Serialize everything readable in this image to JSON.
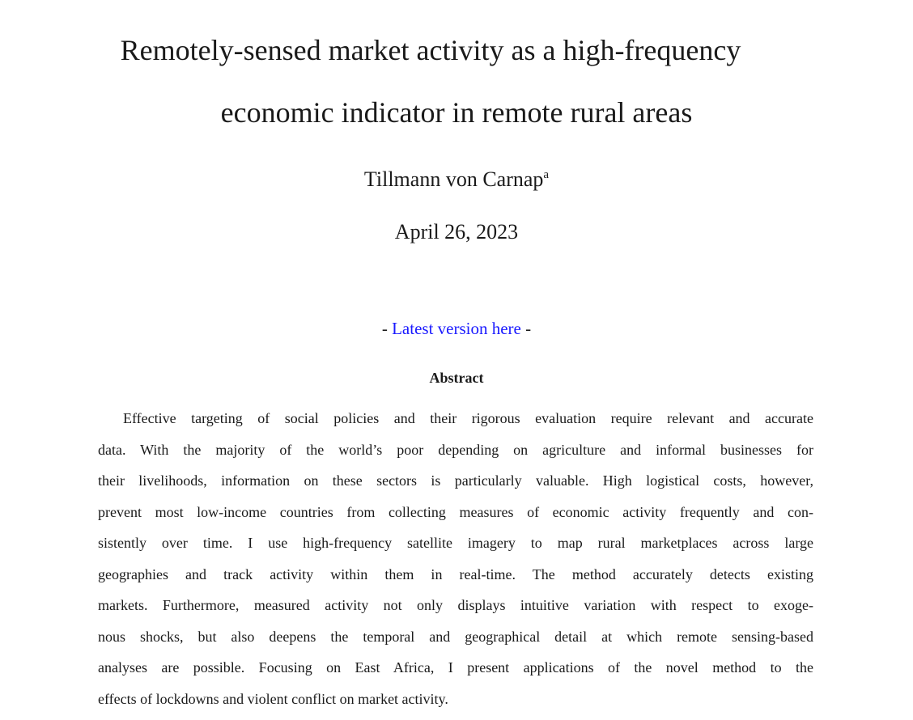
{
  "title": {
    "line1": "Remotely-sensed market activity as a high-frequency",
    "line2": "economic indicator in remote rural areas"
  },
  "author": {
    "name": "Tillmann von Carnap",
    "affiliation_mark": "a"
  },
  "date": "April 26, 2023",
  "version": {
    "prefix": "- ",
    "link_label": "Latest version here",
    "suffix": " -",
    "link_color": "#1a1aff"
  },
  "abstract": {
    "heading": "Abstract",
    "lines": [
      "Effective targeting of social policies and their rigorous evaluation require relevant and accurate",
      "data.  With the majority of the world’s poor depending on agriculture and informal businesses for",
      "their livelihoods, information on these sectors is particularly valuable.  High logistical costs, however,",
      "prevent most low-income countries from collecting measures of economic activity frequently and con-",
      "sistently over time.  I use high-frequency satellite imagery to map rural marketplaces across large",
      "geographies and track activity within them in real-time.  The method accurately detects existing",
      "markets. Furthermore, measured activity not only displays intuitive variation with respect to exoge-",
      "nous shocks, but also deepens the temporal and geographical detail at which remote sensing-based",
      "analyses are possible.  Focusing on East Africa, I present applications of the novel method to the",
      "effects of lockdowns and violent conflict on market activity."
    ]
  }
}
